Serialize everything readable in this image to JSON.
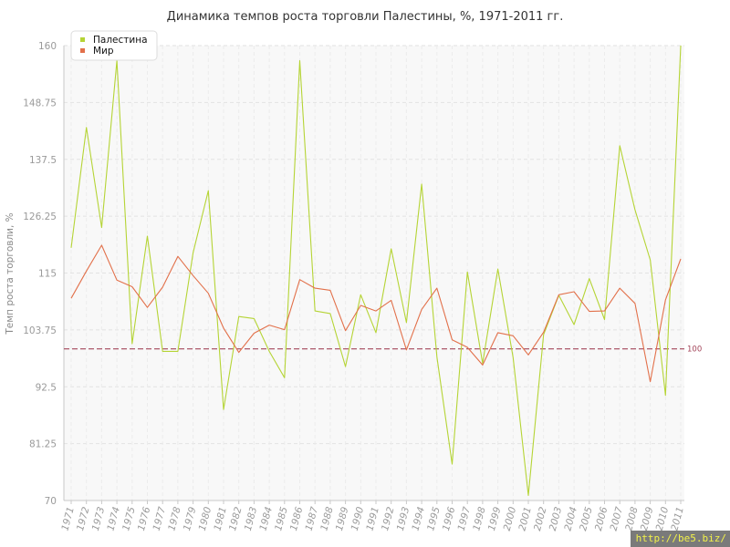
{
  "chart_data": {
    "type": "line",
    "title": "Динамика темпов роста торговли Палестины, %, 1971-2011 гг.",
    "xlabel": "",
    "ylabel": "Темп роста торговли, %",
    "ylim": [
      70,
      160
    ],
    "y_ticks": [
      "70",
      "81.25",
      "92.5",
      "103.75",
      "115",
      "126.25",
      "137.5",
      "148.75",
      "160"
    ],
    "x": [
      "1971",
      "1972",
      "1973",
      "1974",
      "1975",
      "1976",
      "1977",
      "1978",
      "1979",
      "1980",
      "1981",
      "1982",
      "1983",
      "1984",
      "1985",
      "1986",
      "1987",
      "1988",
      "1989",
      "1990",
      "1991",
      "1992",
      "1993",
      "1994",
      "1995",
      "1996",
      "1997",
      "1998",
      "1999",
      "2000",
      "2001",
      "2002",
      "2003",
      "2004",
      "2005",
      "2006",
      "2007",
      "2008",
      "2009",
      "2010",
      "2011"
    ],
    "series": [
      {
        "name": "Палестина",
        "color": "#b5d435",
        "values": [
          120,
          143.8,
          124,
          157,
          101,
          122.3,
          99.5,
          99.5,
          119,
          131.3,
          88,
          106.4,
          106,
          99.5,
          94.3,
          157,
          107.5,
          107,
          96.5,
          110.7,
          103.2,
          119.8,
          105.2,
          132.6,
          98.4,
          77.2,
          115.2,
          97.1,
          115.8,
          98.3,
          71,
          102.8,
          110.6,
          104.8,
          113.9,
          105.8,
          140.2,
          127.5,
          117.6,
          90.8,
          161
        ]
      },
      {
        "name": "Мир",
        "color": "#e2704a",
        "values": [
          110,
          115.4,
          120.5,
          113.6,
          112.3,
          108.2,
          112.2,
          118.3,
          114.5,
          111,
          104.1,
          99.3,
          103.1,
          104.7,
          103.8,
          113.7,
          112,
          111.6,
          103.6,
          108.6,
          107.5,
          109.6,
          99.8,
          107.8,
          112,
          101.8,
          100.3,
          96.8,
          103.2,
          102.6,
          98.8,
          103.3,
          110.7,
          111.3,
          107.4,
          107.5,
          112,
          109,
          93.5,
          109.7,
          117.8
        ]
      }
    ],
    "reference_line": {
      "value": 100,
      "label": "100",
      "color": "#a3455a"
    },
    "grid": true,
    "legend_position": "top-left"
  },
  "watermark": "http://be5.biz/"
}
